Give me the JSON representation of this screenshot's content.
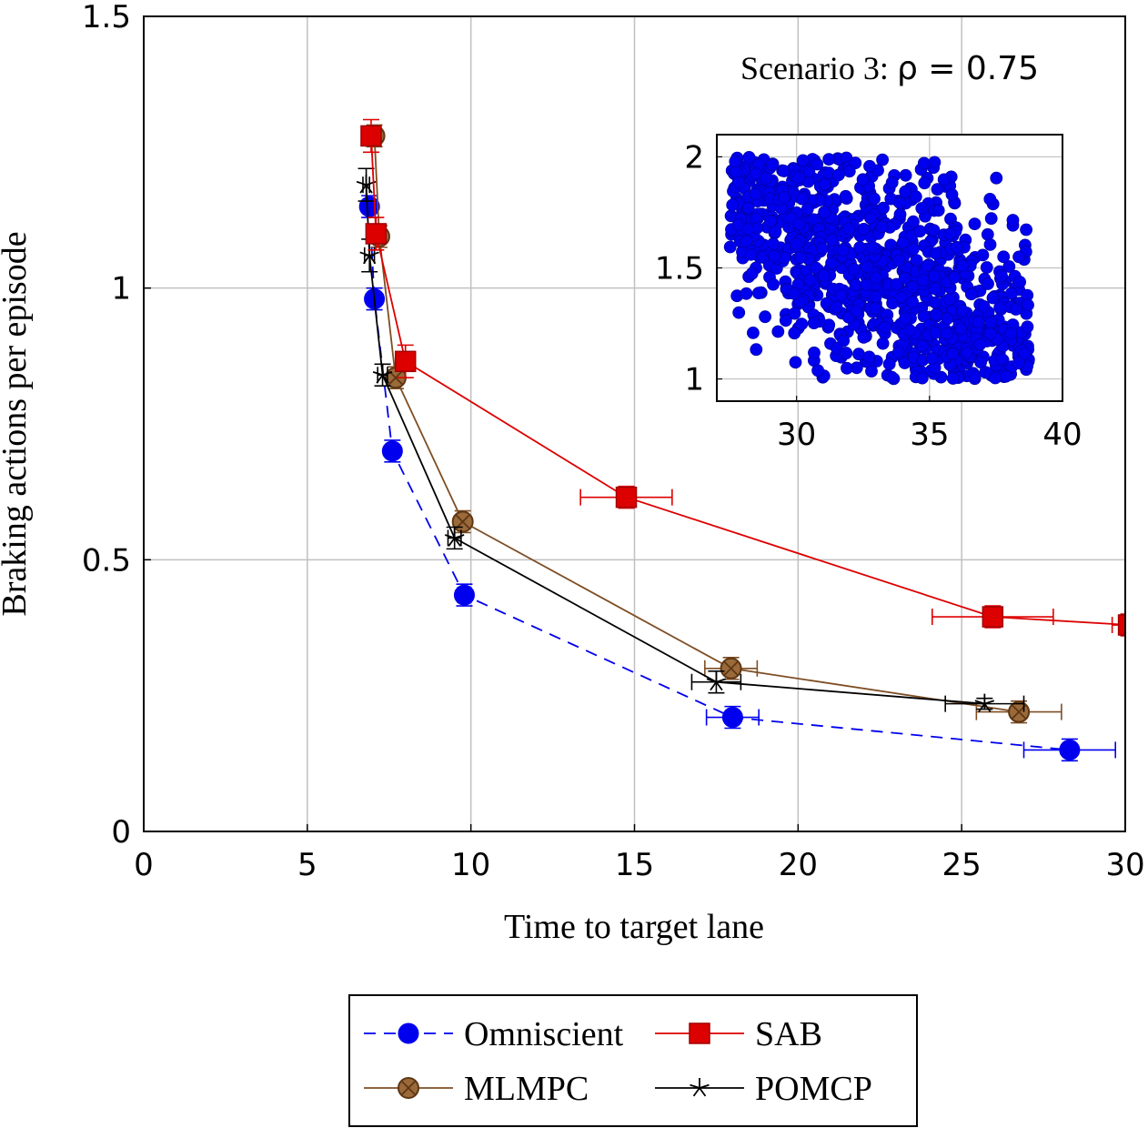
{
  "chart_data": {
    "type": "line",
    "title": "",
    "xlabel": "Time to target lane",
    "ylabel": "Braking actions per episode",
    "xlim": [
      0,
      30
    ],
    "ylim": [
      0,
      1.5
    ],
    "xticks": [
      "0",
      "5",
      "10",
      "15",
      "20",
      "25",
      "30"
    ],
    "yticks": [
      "0",
      "0.5",
      "1",
      "1.5"
    ],
    "grid": true,
    "legend_position": "bottom-outside",
    "annotation": {
      "prefix": "Scenario 3: ",
      "formula": "ρ = 0.75"
    },
    "series": [
      {
        "name": "Omniscient",
        "color": "#0000ee",
        "dash": true,
        "marker": "circle",
        "points": [
          {
            "x": 6.9,
            "y": 1.15,
            "xerr": 0.1,
            "yerr": 0.02
          },
          {
            "x": 7.05,
            "y": 0.98,
            "xerr": 0.1,
            "yerr": 0.02
          },
          {
            "x": 7.6,
            "y": 0.7,
            "xerr": 0.15,
            "yerr": 0.02
          },
          {
            "x": 9.8,
            "y": 0.435,
            "xerr": 0.2,
            "yerr": 0.02
          },
          {
            "x": 18.0,
            "y": 0.21,
            "xerr": 0.8,
            "yerr": 0.02
          },
          {
            "x": 28.3,
            "y": 0.15,
            "xerr": 1.4,
            "yerr": 0.02
          }
        ]
      },
      {
        "name": "SAB",
        "color": "#dd0000",
        "dash": false,
        "marker": "square",
        "points": [
          {
            "x": 6.95,
            "y": 1.28,
            "xerr": 0.1,
            "yerr": 0.03
          },
          {
            "x": 7.1,
            "y": 1.1,
            "xerr": 0.15,
            "yerr": 0.03
          },
          {
            "x": 8.0,
            "y": 0.865,
            "xerr": 0.15,
            "yerr": 0.03
          },
          {
            "x": 14.75,
            "y": 0.615,
            "xerr": 1.4,
            "yerr": 0.02
          },
          {
            "x": 25.95,
            "y": 0.395,
            "xerr": 1.85,
            "yerr": 0.02
          },
          {
            "x": 30.1,
            "y": 0.38,
            "xerr": 0.5,
            "yerr": 0.02
          }
        ]
      },
      {
        "name": "MLMPC",
        "color": "#7e4e24",
        "dash": false,
        "marker": "otimes",
        "points": [
          {
            "x": 7.05,
            "y": 1.28,
            "xerr": 0.15,
            "yerr": 0.02
          },
          {
            "x": 7.2,
            "y": 1.095,
            "xerr": 0.15,
            "yerr": 0.02
          },
          {
            "x": 7.7,
            "y": 0.835,
            "xerr": 0.15,
            "yerr": 0.02
          },
          {
            "x": 9.75,
            "y": 0.57,
            "xerr": 0.15,
            "yerr": 0.02
          },
          {
            "x": 17.95,
            "y": 0.3,
            "xerr": 0.8,
            "yerr": 0.02
          },
          {
            "x": 26.75,
            "y": 0.22,
            "xerr": 1.3,
            "yerr": 0.02
          }
        ]
      },
      {
        "name": "POMCP",
        "color": "#000000",
        "dash": false,
        "marker": "star",
        "points": [
          {
            "x": 6.8,
            "y": 1.19,
            "xerr": 0.1,
            "yerr": 0.03
          },
          {
            "x": 6.9,
            "y": 1.06,
            "xerr": 0.15,
            "yerr": 0.03
          },
          {
            "x": 7.3,
            "y": 0.84,
            "xerr": 0.15,
            "yerr": 0.02
          },
          {
            "x": 9.5,
            "y": 0.54,
            "xerr": 0.2,
            "yerr": 0.02
          },
          {
            "x": 17.5,
            "y": 0.275,
            "xerr": 0.75,
            "yerr": 0.02
          },
          {
            "x": 25.7,
            "y": 0.235,
            "xerr": 1.2,
            "yerr": 0.01
          }
        ]
      }
    ],
    "inset": {
      "type": "scatter",
      "color": "#0000ee",
      "xlim": [
        27,
        40
      ],
      "ylim": [
        0.9,
        2.1
      ],
      "xticks": [
        "30",
        "35",
        "40"
      ],
      "yticks": [
        "1",
        "1.5",
        "2"
      ],
      "grid": true,
      "cloud": {
        "count": 950,
        "x_range": [
          27.5,
          38.8
        ],
        "y_range": [
          1.0,
          2.0
        ],
        "trend": "negative"
      }
    }
  }
}
